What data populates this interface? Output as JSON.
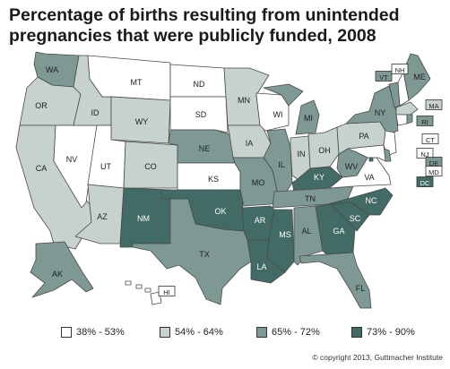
{
  "title": {
    "line1": "Percentage of births resulting from unintended",
    "line2": "pregnancies that were publicly funded, 2008"
  },
  "colors": {
    "c1": "#ffffff",
    "c2": "#c7d2ce",
    "c3": "#7e9893",
    "c4": "#426b66",
    "border": "#4a4a4a"
  },
  "legend": [
    {
      "label": "38% - 53%",
      "color_key": "c1"
    },
    {
      "label": "54% - 64%",
      "color_key": "c2"
    },
    {
      "label": "65% - 72%",
      "color_key": "c3"
    },
    {
      "label": "73% - 90%",
      "color_key": "c4"
    }
  ],
  "states": {
    "WA": "c3",
    "OR": "c2",
    "CA": "c2",
    "NV": "c1",
    "ID": "c2",
    "MT": "c1",
    "WY": "c2",
    "UT": "c1",
    "AZ": "c2",
    "CO": "c2",
    "NM": "c4",
    "ND": "c1",
    "SD": "c1",
    "NE": "c3",
    "KS": "c1",
    "OK": "c4",
    "TX": "c3",
    "MN": "c2",
    "IA": "c2",
    "MO": "c3",
    "AR": "c4",
    "LA": "c4",
    "WI": "c1",
    "IL": "c3",
    "MI": "c3",
    "IN": "c2",
    "OH": "c2",
    "KY": "c4",
    "TN": "c3",
    "MS": "c4",
    "AL": "c3",
    "GA": "c4",
    "FL": "c3",
    "SC": "c4",
    "NC": "c4",
    "VA": "c1",
    "WV": "c3",
    "PA": "c2",
    "NY": "c3",
    "ME": "c3",
    "VT": "c3",
    "NH": "c1",
    "MA": "c2",
    "RI": "c3",
    "CT": "c1",
    "NJ": "c1",
    "DE": "c3",
    "MD": "c1",
    "DC": "c4",
    "AK": "c3",
    "HI": "c1"
  },
  "labels": {
    "WA": "WA",
    "OR": "OR",
    "CA": "CA",
    "NV": "NV",
    "ID": "ID",
    "MT": "MT",
    "WY": "WY",
    "UT": "UT",
    "AZ": "AZ",
    "CO": "CO",
    "NM": "NM",
    "ND": "ND",
    "SD": "SD",
    "NE": "NE",
    "KS": "KS",
    "OK": "OK",
    "TX": "TX",
    "MN": "MN",
    "IA": "IA",
    "MO": "MO",
    "AR": "AR",
    "LA": "LA",
    "WI": "WI",
    "IL": "IL",
    "MI": "MI",
    "IN": "IN",
    "OH": "OH",
    "KY": "KY",
    "TN": "TN",
    "MS": "MS",
    "AL": "AL",
    "GA": "GA",
    "FL": "FL",
    "SC": "SC",
    "NC": "NC",
    "VA": "VA",
    "WV": "WV",
    "PA": "PA",
    "NY": "NY",
    "ME": "ME",
    "VT": "VT",
    "NH": "NH",
    "MA": "MA",
    "RI": "RI",
    "CT": "CT",
    "NJ": "NJ",
    "DE": "DE",
    "MD": "MD",
    "DC": "DC",
    "AK": "AK",
    "HI": "HI"
  },
  "copyright": "© copyright 2013, Guttmacher Institute"
}
